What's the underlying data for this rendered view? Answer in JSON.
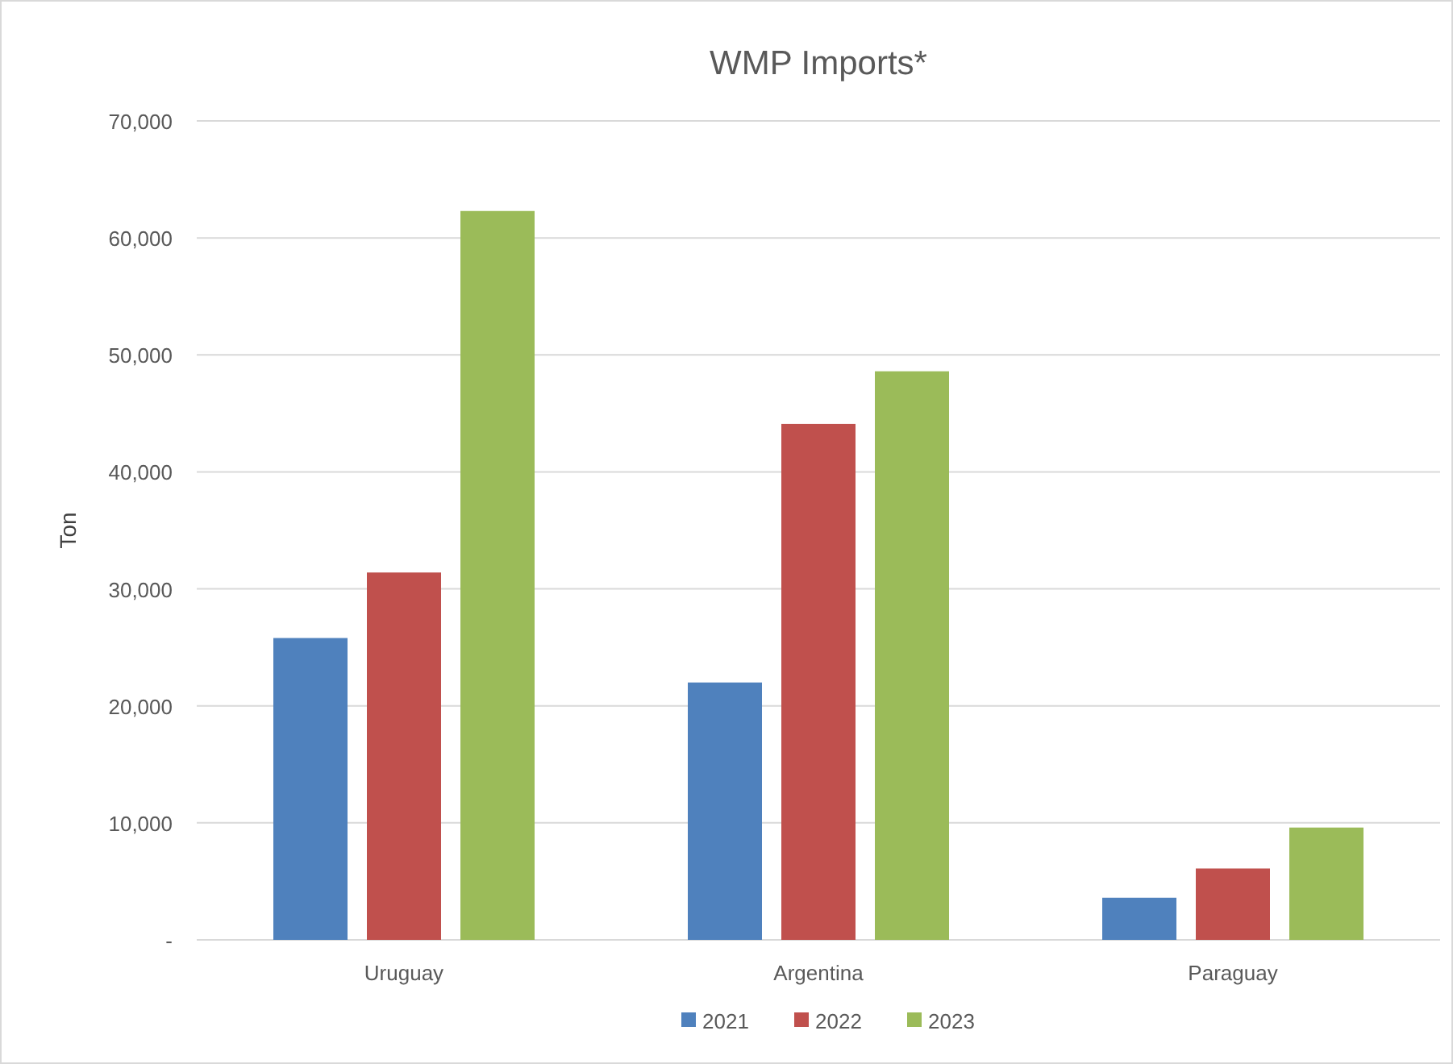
{
  "chart_data": {
    "type": "bar",
    "title": "WMP Imports*",
    "ylabel": "Ton",
    "categories": [
      "Uruguay",
      "Argentina",
      "Paraguay"
    ],
    "series": [
      {
        "name": "2021",
        "color": "#4f81bd",
        "values": [
          25800,
          22000,
          3600
        ]
      },
      {
        "name": "2022",
        "color": "#c0504d",
        "values": [
          31400,
          44100,
          6100
        ]
      },
      {
        "name": "2023",
        "color": "#9bbb59",
        "values": [
          62300,
          48600,
          9600
        ]
      }
    ],
    "ylim": [
      0,
      70000
    ],
    "yticks": [
      {
        "value": 0,
        "label": "-"
      },
      {
        "value": 10000,
        "label": "10,000"
      },
      {
        "value": 20000,
        "label": "20,000"
      },
      {
        "value": 30000,
        "label": "30,000"
      },
      {
        "value": 40000,
        "label": "40,000"
      },
      {
        "value": 50000,
        "label": "50,000"
      },
      {
        "value": 60000,
        "label": "60,000"
      },
      {
        "value": 70000,
        "label": "70,000"
      }
    ],
    "grid": "y",
    "legend": "bottom"
  }
}
